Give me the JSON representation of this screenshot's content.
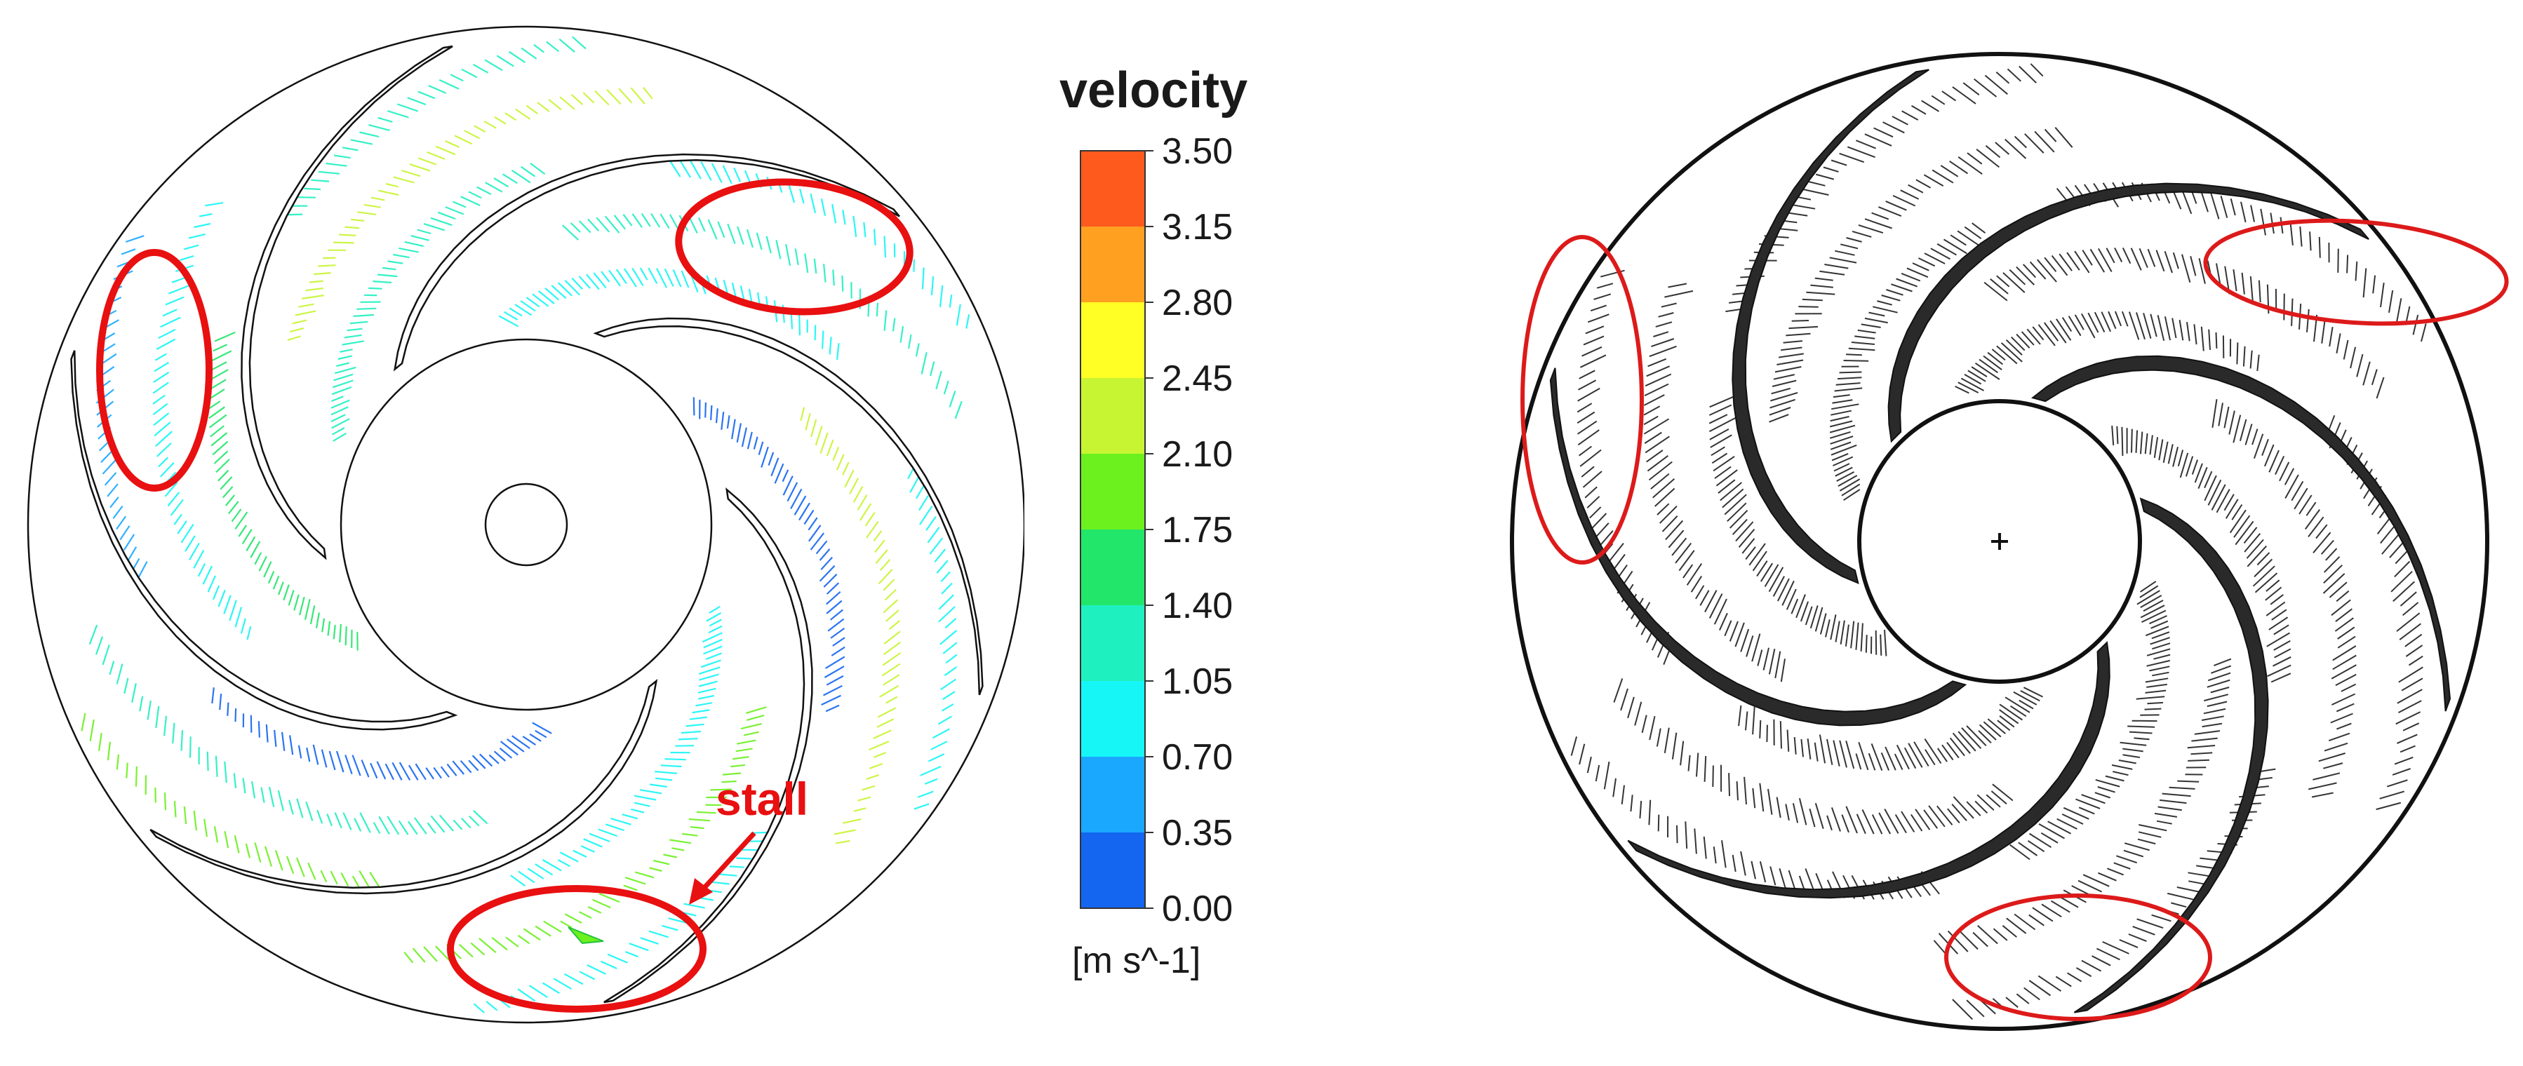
{
  "legend": {
    "title": "velocity",
    "unit": "[m s^-1]",
    "ticks": [
      "3.50",
      "3.15",
      "2.80",
      "2.45",
      "2.10",
      "1.75",
      "1.40",
      "1.05",
      "0.70",
      "0.35",
      "0.00"
    ],
    "colors": [
      "#ff5a1e",
      "#ffa020",
      "#ffff26",
      "#c8f532",
      "#6cf01e",
      "#22e66a",
      "#1ff0c0",
      "#16f6f6",
      "#1aa8ff",
      "#1466f0",
      "#2a46f0"
    ]
  },
  "annotation": {
    "stall_label": "stall",
    "highlight_color": "#e81010"
  },
  "simulation": {
    "vector_colors": [
      "#16f6f6",
      "#1ff0c0",
      "#22e66a",
      "#6cf01e",
      "#c8f532",
      "#1aa8ff",
      "#1466f0"
    ],
    "blade_count": 6
  },
  "experiment": {
    "vector_color": "#111111",
    "blade_count": 6
  }
}
